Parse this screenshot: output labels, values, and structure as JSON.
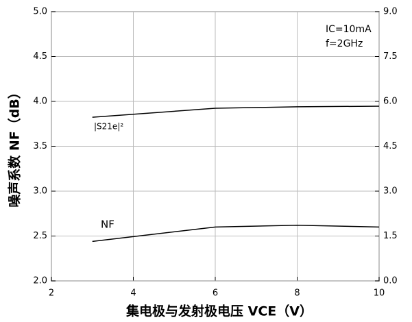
{
  "chart_data": {
    "type": "line",
    "x_label": "集电极与发射极电压 VCE（V）",
    "y_label": "噪声系数 NF（dB）",
    "annotations": [
      "IC=10mA",
      "f=2GHz"
    ],
    "x": [
      3,
      6,
      8,
      10
    ],
    "series": [
      {
        "name": "NF",
        "color": "#000000",
        "values": [
          2.44,
          2.6,
          2.62,
          2.6
        ]
      },
      {
        "name": "|S21e|²",
        "color": "#000000",
        "axis": "y2",
        "values": [
          5.47,
          5.77,
          5.82,
          5.84
        ]
      }
    ],
    "xlim": [
      2,
      10
    ],
    "xticks": [
      2,
      4,
      6,
      8,
      10
    ],
    "ylim": [
      2,
      5
    ],
    "yticks": [
      {
        "value": 2,
        "label": "2.0"
      },
      2.5,
      {
        "value": 3,
        "label": "3.0"
      },
      3.5,
      {
        "value": 4,
        "label": "4.0"
      },
      4.5,
      {
        "value": 5,
        "label": "5.0"
      }
    ],
    "y2lim": [
      0,
      9
    ],
    "y2ticks": [
      {
        "value": 0,
        "label": "0.0"
      },
      1.5,
      {
        "value": 3,
        "label": "3.0"
      },
      4.5,
      {
        "value": 6,
        "label": "6.0"
      },
      7.5,
      {
        "value": 9,
        "label": "9.0"
      }
    ],
    "grid": true
  }
}
